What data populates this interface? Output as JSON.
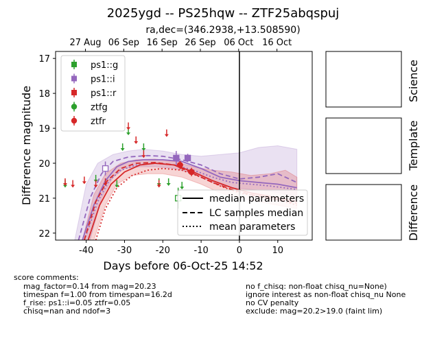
{
  "title": "2025ygd -- PS25hqw -- ZTF25abqspuj",
  "subtitle": "ra,dec=(346.2938,+13.508590)",
  "top_axis_ticks": [
    "27 Aug",
    "06 Sep",
    "16 Sep",
    "26 Sep",
    "06 Oct",
    "16 Oct"
  ],
  "side_panels": [
    "Science",
    "Template",
    "Difference"
  ],
  "score_comments": {
    "header": "score comments:",
    "left": [
      "mag_factor=0.14 from mag=20.23",
      "timespan f=1.00 from timespan=16.2d",
      "f_rise: ps1::i=0.05 ztfr=0.05",
      "chisq=nan and ndof=3"
    ],
    "right": [
      "no f_chisq: non-float chisq_nu=None)",
      "ignore interest as non-float chisq_nu None",
      "no CV penalty",
      "exclude: mag=20.2>19.0 (faint lim)"
    ]
  },
  "colors": {
    "g": "#2ca02c",
    "i": "#9467bd",
    "r": "#d62728",
    "black": "#000000"
  },
  "chart_data": {
    "type": "scatter",
    "xlabel": "Days before 06-Oct-25 14:52",
    "ylabel": "Difference magnitude",
    "xlim": [
      -48,
      19
    ],
    "ylim": [
      22.2,
      16.8
    ],
    "y_inverted": true,
    "xticks": [
      -40,
      -30,
      -20,
      -10,
      0,
      10
    ],
    "yticks": [
      17,
      18,
      19,
      20,
      21,
      22
    ],
    "vline_x": 0,
    "legend_top_left": [
      "ps1::g",
      "ps1::i",
      "ps1::r",
      "ztfg",
      "ztfr"
    ],
    "legend_bottom_right": [
      "median parameters",
      "LC samples median",
      "mean parameters"
    ],
    "detections": [
      {
        "band": "ps1::i",
        "x": -35,
        "y": 20.15,
        "err": 0.2,
        "open": true
      },
      {
        "band": "ps1::i",
        "x": -16.5,
        "y": 19.85,
        "err": 0.2,
        "open": false
      },
      {
        "band": "ps1::i",
        "x": -13.5,
        "y": 19.85,
        "err": 0.12,
        "open": false
      },
      {
        "band": "ps1::g",
        "x": -16,
        "y": 21.0,
        "err": 0.3,
        "open": true
      },
      {
        "band": "ztfr",
        "x": -15.5,
        "y": 20.05,
        "err": 0.12,
        "open": false
      },
      {
        "band": "ztfr",
        "x": -12.5,
        "y": 20.25,
        "err": 0.12,
        "open": false
      }
    ],
    "upper_limits": [
      {
        "band": "ztfg",
        "x": -45.5,
        "y": 20.6
      },
      {
        "band": "ztfg",
        "x": -37.5,
        "y": 20.45
      },
      {
        "band": "ztfg",
        "x": -32,
        "y": 20.6
      },
      {
        "band": "ztfg",
        "x": -30.5,
        "y": 19.55
      },
      {
        "band": "ztfg",
        "x": -29,
        "y": 19.1
      },
      {
        "band": "ztfg",
        "x": -25,
        "y": 19.55
      },
      {
        "band": "ztfg",
        "x": -21,
        "y": 20.55
      },
      {
        "band": "ztfg",
        "x": -18.5,
        "y": 20.55
      },
      {
        "band": "ztfg",
        "x": -15,
        "y": 20.65
      },
      {
        "band": "ztfr",
        "x": -45.5,
        "y": 20.55
      },
      {
        "band": "ztfr",
        "x": -43.5,
        "y": 20.6
      },
      {
        "band": "ztfr",
        "x": -40.5,
        "y": 20.5
      },
      {
        "band": "ztfr",
        "x": -37.5,
        "y": 20.6
      },
      {
        "band": "ztfr",
        "x": -35,
        "y": 20.55
      },
      {
        "band": "ztfr",
        "x": -29,
        "y": 18.95
      },
      {
        "band": "ztfr",
        "x": -27,
        "y": 19.35
      },
      {
        "band": "ztfr",
        "x": -25,
        "y": 19.75
      },
      {
        "band": "ztfr",
        "x": -21,
        "y": 20.6
      },
      {
        "band": "ztfr",
        "x": -19,
        "y": 19.15
      }
    ],
    "models": {
      "i_median": [
        [
          -41,
          22.2
        ],
        [
          -38,
          21.2
        ],
        [
          -35,
          20.5
        ],
        [
          -32,
          20.1
        ],
        [
          -29,
          19.95
        ],
        [
          -25,
          19.9
        ],
        [
          -20,
          19.9
        ],
        [
          -15,
          19.95
        ],
        [
          -10,
          20.15
        ],
        [
          -5,
          20.4
        ],
        [
          0,
          20.5
        ],
        [
          5,
          20.55
        ],
        [
          10,
          20.6
        ],
        [
          15,
          20.7
        ]
      ],
      "i_samples": [
        [
          -42,
          22.2
        ],
        [
          -39,
          21.0
        ],
        [
          -36,
          20.3
        ],
        [
          -33,
          19.95
        ],
        [
          -29,
          19.82
        ],
        [
          -24,
          19.78
        ],
        [
          -20,
          19.8
        ],
        [
          -15,
          19.9
        ],
        [
          -10,
          20.05
        ],
        [
          -5,
          20.3
        ],
        [
          0,
          20.45
        ],
        [
          5,
          20.4
        ],
        [
          10,
          20.3
        ],
        [
          15,
          20.55
        ]
      ],
      "i_mean": [
        [
          -40.5,
          22.2
        ],
        [
          -37,
          21.1
        ],
        [
          -34,
          20.5
        ],
        [
          -31,
          20.2
        ],
        [
          -27,
          20.05
        ],
        [
          -22,
          20.0
        ],
        [
          -17,
          20.05
        ],
        [
          -12,
          20.2
        ],
        [
          -7,
          20.4
        ],
        [
          -2,
          20.55
        ],
        [
          3,
          20.6
        ],
        [
          8,
          20.65
        ],
        [
          15,
          20.75
        ]
      ],
      "r_median": [
        [
          -39.5,
          22.2
        ],
        [
          -36.5,
          21.2
        ],
        [
          -33.5,
          20.6
        ],
        [
          -30,
          20.25
        ],
        [
          -26,
          20.05
        ],
        [
          -22,
          20.0
        ],
        [
          -17,
          20.05
        ],
        [
          -12,
          20.25
        ],
        [
          -7,
          20.5
        ],
        [
          -2,
          20.7
        ],
        [
          3,
          20.85
        ],
        [
          8,
          20.95
        ],
        [
          15,
          21.1
        ]
      ],
      "r_samples": [
        [
          -40.5,
          22.2
        ],
        [
          -37.5,
          21.1
        ],
        [
          -34.5,
          20.5
        ],
        [
          -31,
          20.15
        ],
        [
          -27,
          20.0
        ],
        [
          -22,
          19.98
        ],
        [
          -17,
          20.05
        ],
        [
          -12,
          20.3
        ],
        [
          -7,
          20.55
        ],
        [
          -2,
          20.75
        ],
        [
          3,
          20.9
        ],
        [
          8,
          21.0
        ],
        [
          15,
          21.15
        ]
      ],
      "r_mean": [
        [
          -37.5,
          22.2
        ],
        [
          -35,
          21.3
        ],
        [
          -32,
          20.7
        ],
        [
          -28,
          20.35
        ],
        [
          -24,
          20.2
        ],
        [
          -20,
          20.15
        ],
        [
          -15,
          20.2
        ],
        [
          -10,
          20.4
        ],
        [
          -5,
          20.65
        ],
        [
          0,
          20.85
        ],
        [
          5,
          20.95
        ],
        [
          10,
          21.05
        ],
        [
          15,
          21.2
        ]
      ],
      "i_band_upper": [
        [
          -43,
          22.2
        ],
        [
          -40,
          20.6
        ],
        [
          -37,
          20.0
        ],
        [
          -33,
          19.75
        ],
        [
          -29,
          19.65
        ],
        [
          -25,
          19.6
        ],
        [
          -20,
          19.65
        ],
        [
          -15,
          19.75
        ],
        [
          -10,
          19.8
        ],
        [
          -5,
          19.75
        ],
        [
          0,
          19.7
        ],
        [
          5,
          19.55
        ],
        [
          10,
          19.5
        ],
        [
          15,
          19.6
        ]
      ],
      "i_band_lower": [
        [
          -39,
          22.2
        ],
        [
          -36,
          21.0
        ],
        [
          -33,
          20.4
        ],
        [
          -30,
          20.15
        ],
        [
          -26,
          20.1
        ],
        [
          -22,
          20.1
        ],
        [
          -17,
          20.15
        ],
        [
          -12,
          20.3
        ],
        [
          -7,
          20.55
        ],
        [
          -2,
          20.7
        ],
        [
          3,
          20.75
        ],
        [
          8,
          20.8
        ],
        [
          15,
          20.95
        ]
      ],
      "r_band_upper": [
        [
          -41,
          22.2
        ],
        [
          -38,
          20.9
        ],
        [
          -35,
          20.3
        ],
        [
          -31,
          20.0
        ],
        [
          -27,
          19.9
        ],
        [
          -22,
          19.88
        ],
        [
          -17,
          19.95
        ],
        [
          -12,
          20.1
        ],
        [
          -7,
          20.2
        ],
        [
          -2,
          20.25
        ],
        [
          3,
          20.35
        ],
        [
          8,
          20.3
        ],
        [
          12,
          20.2
        ],
        [
          15,
          20.4
        ]
      ],
      "r_band_lower": [
        [
          -38,
          22.2
        ],
        [
          -35,
          21.2
        ],
        [
          -32,
          20.6
        ],
        [
          -28,
          20.35
        ],
        [
          -24,
          20.3
        ],
        [
          -20,
          20.3
        ],
        [
          -15,
          20.4
        ],
        [
          -10,
          20.6
        ],
        [
          -5,
          20.85
        ],
        [
          0,
          21.0
        ],
        [
          5,
          21.1
        ],
        [
          10,
          21.2
        ],
        [
          15,
          21.3
        ]
      ]
    }
  }
}
